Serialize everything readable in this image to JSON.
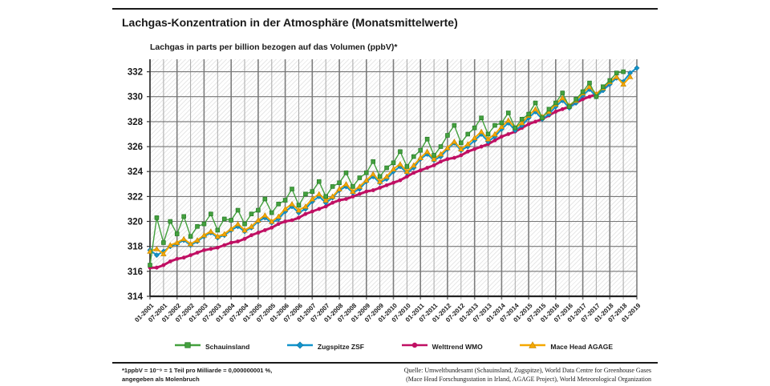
{
  "page": {
    "title": "Lachgas-Konzentration in der Atmosphäre (Monatsmittelwerte)",
    "subtitle": "Lachgas  in parts per billion bezogen auf das Volumen (ppbV)*"
  },
  "footnotes": {
    "left_line1": "*1ppbV = 10⁻⁹ = 1 Teil pro Milliarde = 0,000000001 %,",
    "left_line2": "angegeben als Molenbruch",
    "source_line1": "Quelle: Umweltbundesamt (Schauinsland, Zugspitze), World Data Centre for Greenhouse Gases",
    "source_line2": "(Mace Head Forschungsstation in Irland, AGAGE Project), World Meteorological Organization"
  },
  "chart_data": {
    "type": "line",
    "title": "Lachgas-Konzentration in der Atmosphäre (Monatsmittelwerte)",
    "unit_note": "Lachgas in parts per billion bezogen auf das Volumen (ppbV)*",
    "xlabel": "",
    "ylabel": "ppbV",
    "grid": "both",
    "background": "diagonal-hatch",
    "legend_position": "bottom",
    "ylim": [
      314,
      333
    ],
    "y_ticks": [
      314,
      316,
      318,
      320,
      322,
      324,
      326,
      328,
      330,
      332
    ],
    "xlim_years": [
      2001,
      2019
    ],
    "x_tick_labels": [
      "01-2001",
      "07-2001",
      "01-2002",
      "07-2002",
      "01-2003",
      "07-2003",
      "01-2004",
      "07-2004",
      "01-2005",
      "07-2005",
      "01-2006",
      "07-2006",
      "01-2007",
      "07-2007",
      "01-2008",
      "07-2008",
      "01-2009",
      "07-2009",
      "01-2010",
      "07-2010",
      "01-2011",
      "07-2011",
      "01-2012",
      "07-2012",
      "01-2013",
      "07-2013",
      "01-2014",
      "07-2014",
      "01-2015",
      "07-2015",
      "01-2016",
      "07-2016",
      "01-2017",
      "07-2017",
      "01-2018",
      "07-2018",
      "01-2019"
    ],
    "x_start_year": 2001.0,
    "x_step_years": 0.25,
    "series": [
      {
        "name": "Schauinsland",
        "color": "#44a13e",
        "edge": "#2a7f2a",
        "marker": "square",
        "values": [
          316.5,
          320.3,
          318.3,
          320.0,
          319.0,
          320.4,
          318.8,
          319.6,
          319.8,
          320.6,
          319.3,
          320.2,
          320.1,
          320.9,
          319.8,
          320.6,
          320.9,
          321.8,
          320.7,
          321.4,
          321.7,
          322.6,
          321.3,
          322.2,
          322.4,
          323.2,
          322.0,
          322.8,
          323.1,
          323.9,
          322.8,
          323.5,
          323.9,
          324.8,
          323.6,
          324.3,
          324.7,
          325.6,
          324.4,
          325.2,
          325.7,
          326.6,
          325.3,
          326.0,
          326.9,
          327.7,
          326.3,
          327.0,
          327.5,
          328.3,
          327.0,
          327.7,
          327.9,
          328.7,
          327.5,
          328.2,
          328.6,
          329.5,
          328.3,
          329.0,
          329.5,
          330.3,
          329.2,
          329.8,
          330.4,
          331.1,
          330.0,
          330.8,
          331.3,
          331.9,
          332.0
        ]
      },
      {
        "name": "Zugspitze ZSF",
        "color": "#1193cb",
        "edge": "#0c6f99",
        "marker": "diamond",
        "values": [
          317.7,
          317.3,
          317.6,
          318.0,
          318.2,
          318.5,
          318.1,
          318.4,
          318.8,
          319.1,
          318.7,
          318.9,
          319.3,
          319.6,
          319.2,
          319.5,
          320.0,
          320.3,
          319.9,
          320.2,
          320.8,
          321.2,
          320.7,
          321.0,
          321.6,
          322.0,
          321.5,
          321.9,
          322.5,
          322.8,
          322.3,
          322.6,
          323.2,
          323.6,
          323.1,
          323.4,
          324.0,
          324.4,
          323.9,
          324.3,
          325.0,
          325.4,
          324.9,
          325.2,
          325.8,
          326.3,
          325.7,
          326.0,
          326.5,
          327.0,
          326.4,
          326.8,
          327.4,
          327.9,
          327.3,
          327.7,
          328.3,
          328.8,
          328.2,
          328.6,
          329.2,
          329.7,
          329.1,
          329.5,
          330.1,
          330.6,
          330.0,
          330.5,
          331.0,
          331.5,
          331.2,
          331.9,
          332.3
        ]
      },
      {
        "name": "Welttrend WMO",
        "color": "#c00f63",
        "edge": "#8f0b49",
        "marker": "circle",
        "values": [
          316.3,
          316.3,
          316.5,
          316.8,
          317.0,
          317.1,
          317.3,
          317.5,
          317.7,
          317.8,
          317.9,
          318.1,
          318.3,
          318.4,
          318.6,
          318.9,
          319.1,
          319.3,
          319.5,
          319.8,
          320.0,
          320.1,
          320.3,
          320.6,
          320.8,
          321.0,
          321.2,
          321.5,
          321.7,
          321.8,
          322.0,
          322.2,
          322.4,
          322.5,
          322.7,
          322.9,
          323.1,
          323.3,
          323.6,
          323.9,
          324.1,
          324.3,
          324.5,
          324.8,
          325.0,
          325.1,
          325.3,
          325.6,
          325.8,
          326.0,
          326.2,
          326.5,
          326.8,
          327.0,
          327.2,
          327.5,
          327.8,
          328.0,
          328.2,
          328.5,
          328.8,
          329.0,
          329.2,
          329.5,
          329.8,
          330.0,
          330.2,
          330.6,
          331.0
        ]
      },
      {
        "name": "Mace Head AGAGE",
        "color": "#f5a800",
        "edge": "#c78700",
        "marker": "triangle",
        "values": [
          317.6,
          317.8,
          317.4,
          318.1,
          318.3,
          318.6,
          318.2,
          318.5,
          318.9,
          319.2,
          318.8,
          319.0,
          319.4,
          319.8,
          319.3,
          319.6,
          320.1,
          320.5,
          320.0,
          320.4,
          321.0,
          321.4,
          320.9,
          321.2,
          321.8,
          322.2,
          321.7,
          322.0,
          322.6,
          323.0,
          322.4,
          322.8,
          323.3,
          323.8,
          323.2,
          323.6,
          324.2,
          324.6,
          324.0,
          324.5,
          325.1,
          325.6,
          325.0,
          325.4,
          325.9,
          326.4,
          325.8,
          326.2,
          326.7,
          327.2,
          326.6,
          327.0,
          327.6,
          328.1,
          327.5,
          327.9,
          328.5,
          329.0,
          328.4,
          328.8,
          329.4,
          329.9,
          329.3,
          329.7,
          330.3,
          330.8,
          330.2,
          330.7,
          331.2,
          331.6,
          331.0,
          331.6
        ]
      }
    ]
  }
}
